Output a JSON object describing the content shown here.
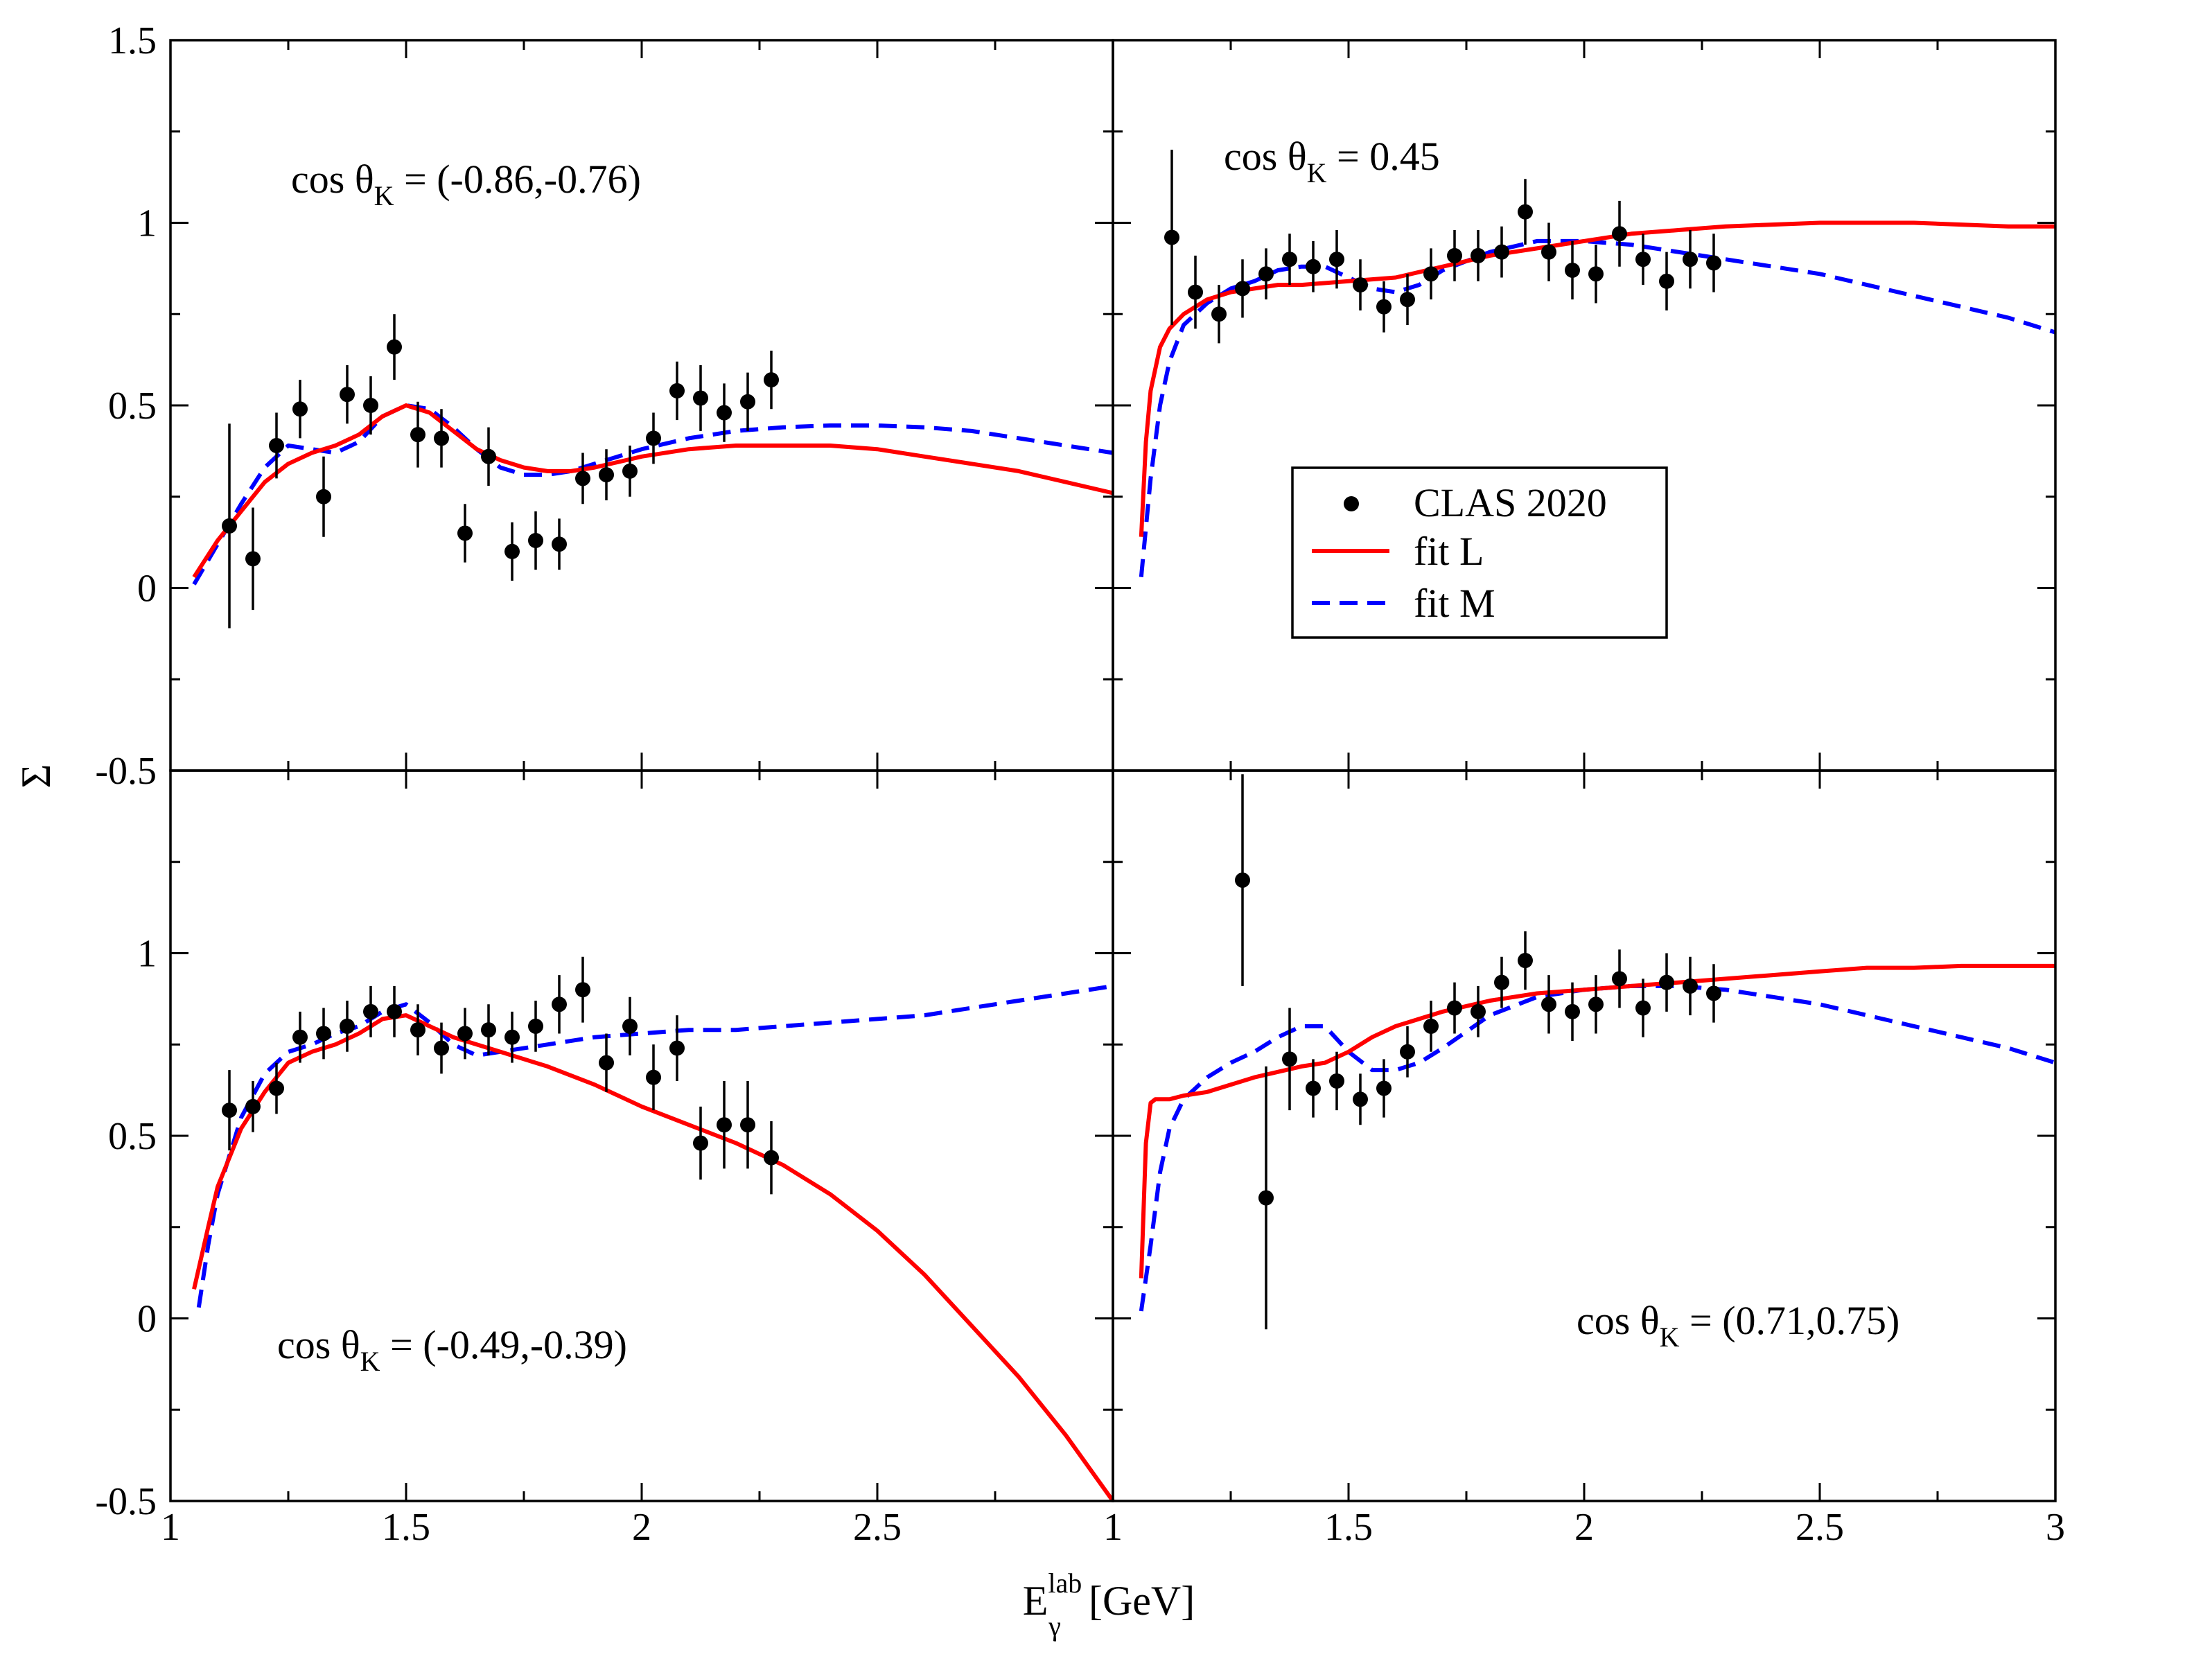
{
  "chart_data": {
    "type": "scatter",
    "layout": "2x2 grid of panels sharing axes",
    "xlabel": "E",
    "xlabel_sub": "γ",
    "xlabel_sup": "lab",
    "xlabel_unit": "[GeV]",
    "ylabel": "Σ",
    "xlim": [
      1,
      3
    ],
    "ylim": [
      -0.5,
      1.5
    ],
    "y_ticks_top": [
      "1.5",
      "1",
      "0.5",
      "0",
      "-0.5"
    ],
    "y_ticks_bottom": [
      "1",
      "0.5",
      "0",
      "-0.5"
    ],
    "x_ticks_left": [
      "1",
      "1.5",
      "2",
      "2.5"
    ],
    "x_ticks_right": [
      "1",
      "1.5",
      "2",
      "2.5",
      "3"
    ],
    "legend": {
      "position": "inside top-right panel, center-left",
      "entries": [
        {
          "label": "CLAS 2020",
          "style": "marker",
          "color": "#000000"
        },
        {
          "label": "fit L",
          "style": "solid",
          "color": "#ff0000"
        },
        {
          "label": "fit M",
          "style": "dashed",
          "color": "#0000ff"
        }
      ]
    },
    "panels": [
      {
        "id": "top-left",
        "annotation": {
          "pre": "cos θ",
          "sub": "K",
          "post": " = (-0.86,-0.76)"
        },
        "clas": {
          "x": [
            1.125,
            1.175,
            1.225,
            1.275,
            1.325,
            1.375,
            1.425,
            1.475,
            1.525,
            1.575,
            1.625,
            1.675,
            1.725,
            1.775,
            1.825,
            1.875,
            1.925,
            1.975,
            2.025,
            2.075,
            2.125,
            2.175,
            2.225,
            2.275
          ],
          "y": [
            0.17,
            0.08,
            0.39,
            0.49,
            0.25,
            0.53,
            0.5,
            0.66,
            0.42,
            0.41,
            0.15,
            0.36,
            0.1,
            0.13,
            0.12,
            0.3,
            0.31,
            0.32,
            0.41,
            0.54,
            0.52,
            0.48,
            0.51,
            0.57
          ],
          "err": [
            0.28,
            0.14,
            0.09,
            0.08,
            0.11,
            0.08,
            0.08,
            0.09,
            0.09,
            0.08,
            0.08,
            0.08,
            0.08,
            0.08,
            0.07,
            0.07,
            0.07,
            0.07,
            0.07,
            0.08,
            0.09,
            0.08,
            0.08,
            0.08
          ]
        },
        "fit_L": {
          "x": [
            1.05,
            1.1,
            1.15,
            1.2,
            1.25,
            1.3,
            1.35,
            1.4,
            1.45,
            1.5,
            1.55,
            1.6,
            1.65,
            1.7,
            1.75,
            1.8,
            1.85,
            1.9,
            2.0,
            2.1,
            2.2,
            2.3,
            2.4,
            2.5,
            2.6,
            2.7,
            2.8,
            2.9,
            3.0
          ],
          "y": [
            0.03,
            0.13,
            0.21,
            0.29,
            0.34,
            0.37,
            0.39,
            0.42,
            0.47,
            0.5,
            0.48,
            0.43,
            0.38,
            0.35,
            0.33,
            0.32,
            0.32,
            0.33,
            0.36,
            0.38,
            0.39,
            0.39,
            0.39,
            0.38,
            0.36,
            0.34,
            0.32,
            0.29,
            0.26
          ]
        },
        "fit_M": {
          "x": [
            1.05,
            1.1,
            1.15,
            1.2,
            1.25,
            1.3,
            1.35,
            1.4,
            1.45,
            1.5,
            1.55,
            1.6,
            1.65,
            1.7,
            1.75,
            1.8,
            1.85,
            1.9,
            2.0,
            2.1,
            2.2,
            2.3,
            2.4,
            2.5,
            2.6,
            2.7,
            2.8,
            2.9,
            3.0
          ],
          "y": [
            0.01,
            0.12,
            0.23,
            0.33,
            0.39,
            0.38,
            0.37,
            0.4,
            0.47,
            0.5,
            0.49,
            0.44,
            0.38,
            0.33,
            0.31,
            0.31,
            0.32,
            0.34,
            0.38,
            0.41,
            0.43,
            0.44,
            0.445,
            0.445,
            0.44,
            0.43,
            0.41,
            0.39,
            0.37
          ]
        }
      },
      {
        "id": "top-right",
        "annotation": {
          "pre": "cos θ",
          "sub": "K",
          "post": " = 0.45"
        },
        "clas": {
          "x": [
            1.125,
            1.175,
            1.225,
            1.275,
            1.325,
            1.375,
            1.425,
            1.475,
            1.525,
            1.575,
            1.625,
            1.675,
            1.725,
            1.775,
            1.825,
            1.875,
            1.925,
            1.975,
            2.025,
            2.075,
            2.125,
            2.175,
            2.225,
            2.275
          ],
          "y": [
            0.96,
            0.81,
            0.75,
            0.82,
            0.86,
            0.9,
            0.88,
            0.9,
            0.83,
            0.77,
            0.79,
            0.86,
            0.91,
            0.91,
            0.92,
            1.03,
            0.92,
            0.87,
            0.86,
            0.97,
            0.9,
            0.84,
            0.9,
            0.89
          ],
          "err": [
            0.24,
            0.1,
            0.08,
            0.08,
            0.07,
            0.07,
            0.07,
            0.08,
            0.07,
            0.07,
            0.07,
            0.07,
            0.07,
            0.07,
            0.07,
            0.09,
            0.08,
            0.08,
            0.08,
            0.09,
            0.07,
            0.08,
            0.08,
            0.08
          ]
        },
        "fit_L": {
          "x": [
            1.06,
            1.07,
            1.08,
            1.1,
            1.12,
            1.15,
            1.2,
            1.25,
            1.3,
            1.35,
            1.4,
            1.5,
            1.6,
            1.7,
            1.8,
            1.9,
            2.0,
            2.1,
            2.2,
            2.3,
            2.4,
            2.5,
            2.6,
            2.7,
            2.8,
            2.9,
            3.0
          ],
          "y": [
            0.14,
            0.4,
            0.54,
            0.66,
            0.71,
            0.75,
            0.79,
            0.81,
            0.82,
            0.83,
            0.83,
            0.84,
            0.85,
            0.88,
            0.91,
            0.93,
            0.95,
            0.97,
            0.98,
            0.99,
            0.995,
            1.0,
            1.0,
            1.0,
            0.995,
            0.99,
            0.99
          ]
        },
        "fit_M": {
          "x": [
            1.06,
            1.08,
            1.1,
            1.12,
            1.15,
            1.2,
            1.25,
            1.3,
            1.35,
            1.4,
            1.45,
            1.5,
            1.55,
            1.6,
            1.65,
            1.7,
            1.8,
            1.9,
            2.0,
            2.1,
            2.2,
            2.3,
            2.4,
            2.5,
            2.6,
            2.7,
            2.8,
            2.9,
            3.0
          ],
          "y": [
            0.03,
            0.3,
            0.5,
            0.62,
            0.72,
            0.78,
            0.82,
            0.84,
            0.87,
            0.88,
            0.88,
            0.85,
            0.82,
            0.81,
            0.83,
            0.87,
            0.92,
            0.95,
            0.95,
            0.94,
            0.92,
            0.9,
            0.88,
            0.86,
            0.83,
            0.8,
            0.77,
            0.74,
            0.7
          ]
        }
      },
      {
        "id": "bottom-left",
        "annotation": {
          "pre": "cos θ",
          "sub": "K",
          "post": " = (-0.49,-0.39)"
        },
        "clas": {
          "x": [
            1.125,
            1.175,
            1.225,
            1.275,
            1.325,
            1.375,
            1.425,
            1.475,
            1.525,
            1.575,
            1.625,
            1.675,
            1.725,
            1.775,
            1.825,
            1.875,
            1.925,
            1.975,
            2.025,
            2.075,
            2.125,
            2.175,
            2.225,
            2.275
          ],
          "y": [
            0.57,
            0.58,
            0.63,
            0.77,
            0.78,
            0.8,
            0.84,
            0.84,
            0.79,
            0.74,
            0.78,
            0.79,
            0.77,
            0.8,
            0.86,
            0.9,
            0.7,
            0.8,
            0.66,
            0.74,
            0.48,
            0.53,
            0.53,
            0.44
          ],
          "err": [
            0.11,
            0.07,
            0.07,
            0.07,
            0.07,
            0.07,
            0.07,
            0.07,
            0.07,
            0.07,
            0.07,
            0.07,
            0.07,
            0.07,
            0.08,
            0.09,
            0.08,
            0.08,
            0.09,
            0.09,
            0.1,
            0.12,
            0.12,
            0.1
          ]
        },
        "fit_L": {
          "x": [
            1.05,
            1.08,
            1.1,
            1.15,
            1.2,
            1.25,
            1.3,
            1.35,
            1.4,
            1.45,
            1.5,
            1.55,
            1.6,
            1.7,
            1.8,
            1.9,
            2.0,
            2.1,
            2.2,
            2.3,
            2.4,
            2.5,
            2.6,
            2.7,
            2.8,
            2.9,
            3.0
          ],
          "y": [
            0.08,
            0.25,
            0.36,
            0.52,
            0.62,
            0.7,
            0.73,
            0.75,
            0.78,
            0.82,
            0.83,
            0.8,
            0.77,
            0.73,
            0.69,
            0.64,
            0.58,
            0.53,
            0.48,
            0.42,
            0.34,
            0.24,
            0.12,
            -0.02,
            -0.16,
            -0.32,
            -0.5
          ]
        },
        "fit_M": {
          "x": [
            1.06,
            1.08,
            1.1,
            1.15,
            1.2,
            1.25,
            1.3,
            1.35,
            1.4,
            1.45,
            1.5,
            1.55,
            1.6,
            1.65,
            1.7,
            1.8,
            1.9,
            2.0,
            2.1,
            2.2,
            2.3,
            2.4,
            2.5,
            2.6,
            2.7,
            2.8,
            2.9,
            3.0
          ],
          "y": [
            0.03,
            0.2,
            0.34,
            0.55,
            0.67,
            0.73,
            0.75,
            0.78,
            0.8,
            0.84,
            0.86,
            0.81,
            0.75,
            0.72,
            0.73,
            0.75,
            0.77,
            0.78,
            0.79,
            0.79,
            0.8,
            0.81,
            0.82,
            0.83,
            0.85,
            0.87,
            0.89,
            0.91
          ]
        }
      },
      {
        "id": "bottom-right",
        "annotation": {
          "pre": "cos θ",
          "sub": "K",
          "post": " = (0.71,0.75)"
        },
        "clas": {
          "x": [
            1.275,
            1.325,
            1.375,
            1.425,
            1.475,
            1.525,
            1.575,
            1.625,
            1.675,
            1.725,
            1.775,
            1.825,
            1.875,
            1.925,
            1.975,
            2.025,
            2.075,
            2.125,
            2.175,
            2.225,
            2.275
          ],
          "y": [
            1.2,
            0.33,
            0.71,
            0.63,
            0.65,
            0.6,
            0.63,
            0.73,
            0.8,
            0.85,
            0.84,
            0.92,
            0.98,
            0.86,
            0.84,
            0.86,
            0.93,
            0.85,
            0.92,
            0.91,
            0.89
          ],
          "err": [
            0.29,
            0.36,
            0.14,
            0.08,
            0.08,
            0.07,
            0.08,
            0.07,
            0.07,
            0.07,
            0.07,
            0.07,
            0.08,
            0.08,
            0.08,
            0.08,
            0.08,
            0.08,
            0.08,
            0.08,
            0.08
          ]
        },
        "fit_L": {
          "x": [
            1.06,
            1.07,
            1.08,
            1.09,
            1.1,
            1.12,
            1.15,
            1.2,
            1.3,
            1.4,
            1.45,
            1.5,
            1.55,
            1.6,
            1.7,
            1.8,
            1.9,
            2.0,
            2.1,
            2.2,
            2.3,
            2.4,
            2.5,
            2.6,
            2.7,
            2.8,
            2.9,
            3.0
          ],
          "y": [
            0.11,
            0.48,
            0.59,
            0.6,
            0.6,
            0.6,
            0.61,
            0.62,
            0.66,
            0.69,
            0.7,
            0.73,
            0.77,
            0.8,
            0.84,
            0.87,
            0.89,
            0.9,
            0.91,
            0.92,
            0.93,
            0.94,
            0.95,
            0.96,
            0.96,
            0.965,
            0.965,
            0.965
          ]
        },
        "fit_M": {
          "x": [
            1.06,
            1.08,
            1.1,
            1.12,
            1.15,
            1.2,
            1.25,
            1.3,
            1.35,
            1.4,
            1.45,
            1.5,
            1.55,
            1.6,
            1.65,
            1.7,
            1.8,
            1.9,
            2.0,
            2.1,
            2.2,
            2.3,
            2.4,
            2.5,
            2.6,
            2.7,
            2.8,
            2.9,
            3.0
          ],
          "y": [
            0.02,
            0.2,
            0.4,
            0.52,
            0.6,
            0.66,
            0.7,
            0.73,
            0.77,
            0.8,
            0.8,
            0.73,
            0.68,
            0.68,
            0.7,
            0.74,
            0.83,
            0.88,
            0.9,
            0.91,
            0.91,
            0.9,
            0.88,
            0.86,
            0.83,
            0.8,
            0.77,
            0.74,
            0.7
          ]
        }
      }
    ]
  }
}
